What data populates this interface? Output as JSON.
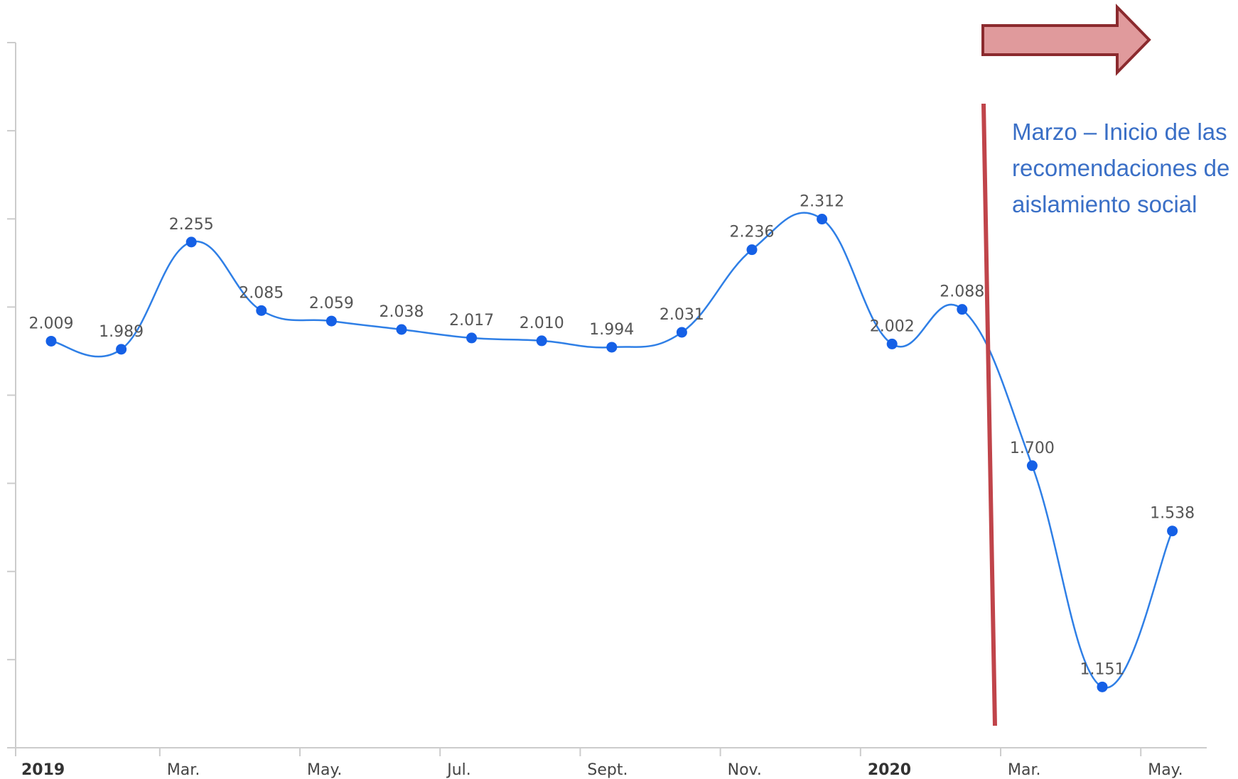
{
  "chart_data": {
    "type": "line",
    "title": "",
    "xlabel": "",
    "ylabel": "",
    "x": [
      "2019-01",
      "2019-02",
      "2019-03",
      "2019-04",
      "2019-05",
      "2019-06",
      "2019-07",
      "2019-08",
      "2019-09",
      "2019-10",
      "2019-11",
      "2019-12",
      "2020-01",
      "2020-02",
      "2020-03",
      "2020-04",
      "2020-05"
    ],
    "series": [
      {
        "values": [
          2009,
          1989,
          2255,
          2085,
          2059,
          2038,
          2017,
          2010,
          1994,
          2031,
          2236,
          2312,
          2002,
          2088,
          1700,
          1151,
          1538
        ],
        "labels": [
          "2.009",
          "1.989",
          "2.255",
          "2.085",
          "2.059",
          "2.038",
          "2.017",
          "2.010",
          "1.994",
          "2.031",
          "2.236",
          "2.312",
          "2.002",
          "2.088",
          "1.700",
          "1.151",
          "1.538"
        ],
        "color": "#2f7fe6"
      }
    ],
    "x_tick_labels": [
      {
        "text": "2019",
        "month": "2019-01",
        "bold": true
      },
      {
        "text": "Mar.",
        "month": "2019-03"
      },
      {
        "text": "May.",
        "month": "2019-05"
      },
      {
        "text": "Jul.",
        "month": "2019-07"
      },
      {
        "text": "Sept.",
        "month": "2019-09"
      },
      {
        "text": "Nov.",
        "month": "2019-11"
      },
      {
        "text": "2020",
        "month": "2020-01",
        "bold": true
      },
      {
        "text": "Mar.",
        "month": "2020-03"
      },
      {
        "text": "May.",
        "month": "2020-05"
      }
    ],
    "ylim": [
      1000,
      2750
    ],
    "y_tick_count": 9,
    "y_tick_labels_shown": false,
    "grid": false,
    "legend": "none",
    "colors": {
      "line": "#2f7fe6",
      "point": "#1560e6",
      "axis": "#cccccc",
      "marker_line": "#c0444a",
      "arrow_fill": "#e09a9c",
      "arrow_stroke": "#8b2a2e",
      "note_text": "#3a6fc6"
    },
    "annotations": {
      "note_lines": [
        "Marzo – Inicio de las",
        "recomendaciones de",
        "aislamiento social"
      ],
      "marker_position": "between 2020-02 and 2020-03",
      "arrow_direction": "right"
    }
  }
}
